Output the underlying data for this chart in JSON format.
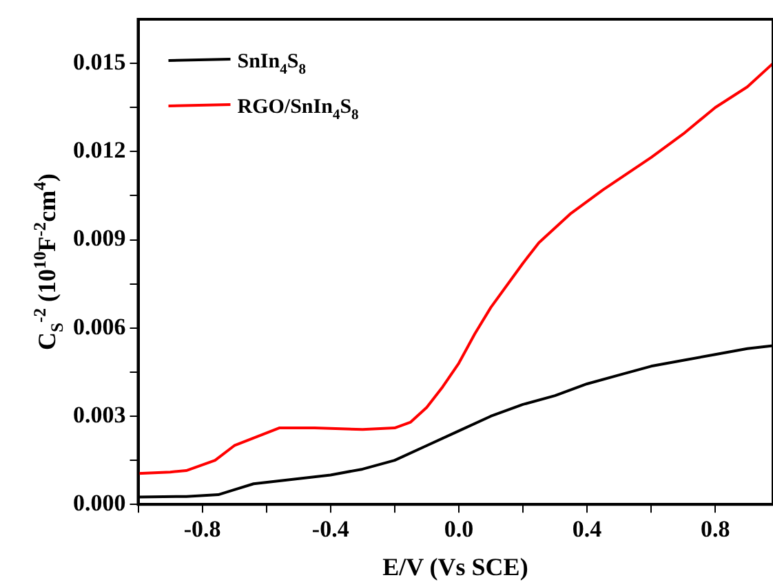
{
  "chart_data": {
    "type": "line",
    "xlabel": "E/V (Vs SCE)",
    "ylabel": "C$_{S}$$^{-2}$ (10$^{10}$F$^{-2}$cm$^{4}$)",
    "xlim": [
      -1.0,
      0.98
    ],
    "ylim": [
      0,
      0.0165
    ],
    "xticks": [
      {
        "value": -1.0,
        "label": null
      },
      -0.8,
      {
        "value": -0.6,
        "label": null
      },
      -0.4,
      {
        "value": -0.2,
        "label": null
      },
      {
        "value": 0,
        "label": "0.0"
      },
      {
        "value": 0.2,
        "label": null
      },
      0.4,
      {
        "value": 0.6,
        "label": null
      },
      0.8
    ],
    "yticks": [
      {
        "value": 0,
        "label": "0.000"
      },
      {
        "value": 0.0015,
        "label": null
      },
      0.003,
      {
        "value": 0.0045,
        "label": null
      },
      0.006,
      {
        "value": 0.0075,
        "label": null
      },
      0.009,
      {
        "value": 0.0105,
        "label": null
      },
      0.012,
      {
        "value": 0.0135,
        "label": null
      },
      0.015
    ],
    "legend": "top left",
    "grid": false,
    "marker": "none",
    "line_style": "solid",
    "series": [
      {
        "name": "SnIn$_{4}$S$_{8}$",
        "color": "#000000",
        "x": [
          -1.0,
          -0.85,
          -0.75,
          -0.7,
          -0.64,
          -0.56,
          -0.4,
          -0.3,
          -0.2,
          -0.1,
          0.0,
          0.1,
          0.2,
          0.3,
          0.4,
          0.5,
          0.6,
          0.7,
          0.8,
          0.9,
          0.98
        ],
        "values": [
          0.00025,
          0.00027,
          0.00033,
          0.0005,
          0.0007,
          0.0008,
          0.001,
          0.0012,
          0.0015,
          0.002,
          0.0025,
          0.003,
          0.0034,
          0.0037,
          0.0041,
          0.0044,
          0.0047,
          0.0049,
          0.0051,
          0.0053,
          0.0054
        ]
      },
      {
        "name": "RGO/SnIn$_{4}$S$_{8}$",
        "color": "#ff0000",
        "x": [
          -1.0,
          -0.9,
          -0.85,
          -0.76,
          -0.7,
          -0.63,
          -0.56,
          -0.45,
          -0.3,
          -0.2,
          -0.15,
          -0.1,
          -0.05,
          0.0,
          0.05,
          0.1,
          0.2,
          0.25,
          0.35,
          0.45,
          0.6,
          0.7,
          0.8,
          0.9,
          0.98
        ],
        "values": [
          0.00105,
          0.0011,
          0.00115,
          0.0015,
          0.002,
          0.0023,
          0.0026,
          0.0026,
          0.00255,
          0.0026,
          0.0028,
          0.0033,
          0.004,
          0.0048,
          0.0058,
          0.0067,
          0.0082,
          0.0089,
          0.0099,
          0.0107,
          0.0118,
          0.0126,
          0.0135,
          0.0142,
          0.015
        ]
      }
    ]
  }
}
